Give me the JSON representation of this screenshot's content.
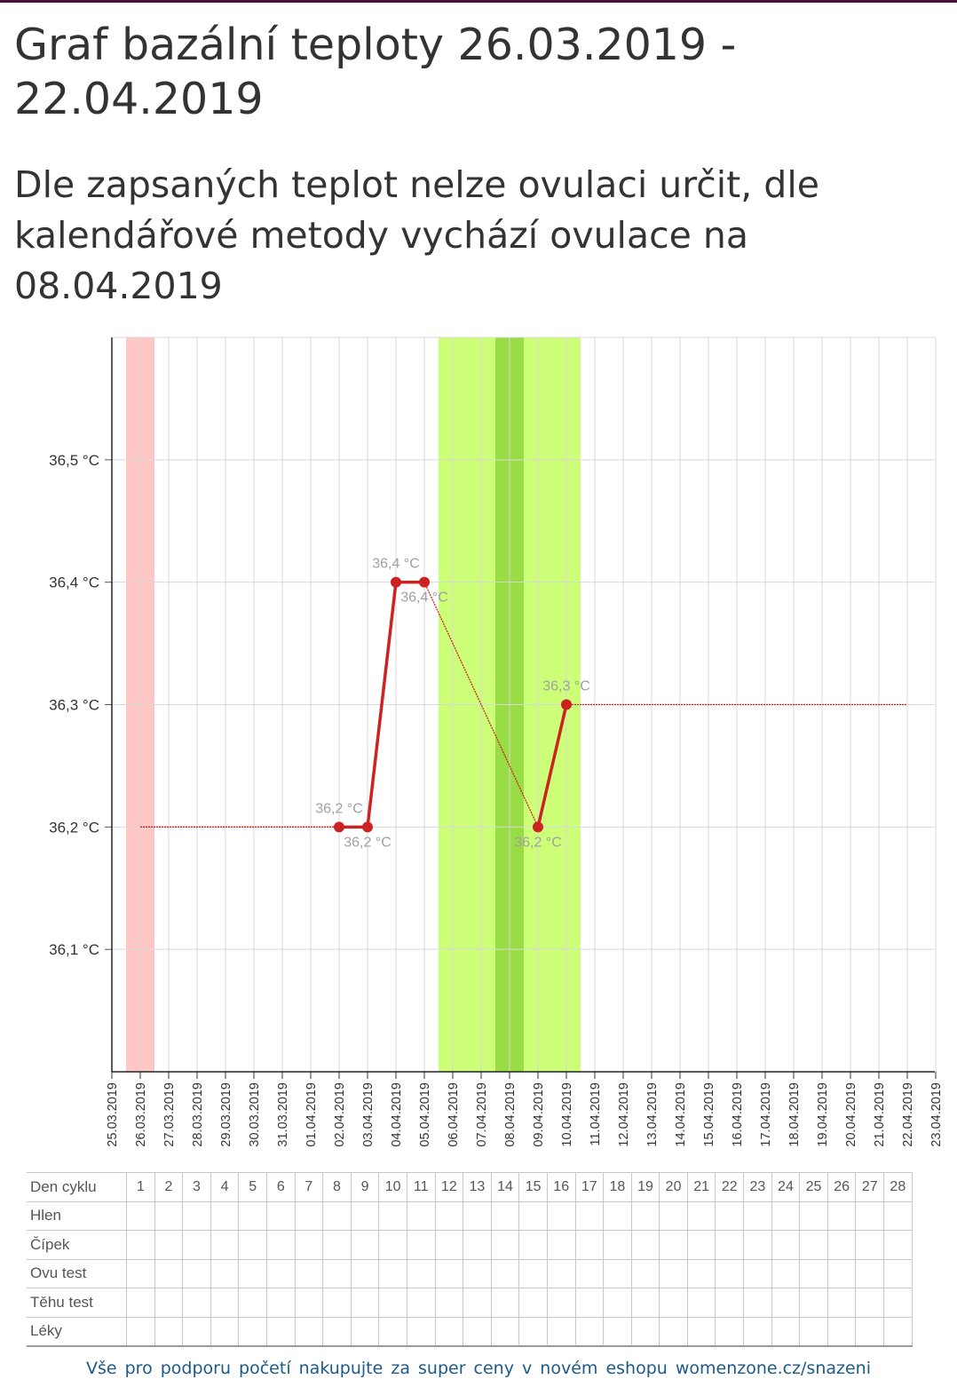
{
  "title": "Graf bazální teploty 26.03.2019 - 22.04.2019",
  "subtitle": "Dle zapsaných teplot nelze ovulaci určit, dle kalendářové metody vychází ovulace na 08.04.2019",
  "colors": {
    "menstruation": "#ffc6c6",
    "fertile": "#ccff77",
    "ovulation": "#99dd44",
    "series": "#cc2222",
    "grid": "#d8d8d8",
    "label": "#a0a0a0",
    "header": "#4b0f3a",
    "link": "#1c5a8a"
  },
  "chart_data": {
    "type": "line",
    "title": "",
    "xlabel": "",
    "ylabel": "",
    "categories": [
      "25.03.2019",
      "26.03.2019",
      "27.03.2019",
      "28.03.2019",
      "29.03.2019",
      "30.03.2019",
      "31.03.2019",
      "01.04.2019",
      "02.04.2019",
      "03.04.2019",
      "04.04.2019",
      "05.04.2019",
      "06.04.2019",
      "07.04.2019",
      "08.04.2019",
      "09.04.2019",
      "10.04.2019",
      "11.04.2019",
      "12.04.2019",
      "13.04.2019",
      "14.04.2019",
      "15.04.2019",
      "16.04.2019",
      "17.04.2019",
      "18.04.2019",
      "19.04.2019",
      "20.04.2019",
      "21.04.2019",
      "22.04.2019",
      "23.04.2019"
    ],
    "ylim": [
      36.0,
      36.6
    ],
    "yticks": [
      36.1,
      36.2,
      36.3,
      36.4,
      36.5
    ],
    "ytick_labels": [
      "36,1 °C",
      "36,2 °C",
      "36,3 °C",
      "36,4 °C",
      "36,5 °C"
    ],
    "grid": true,
    "bands": [
      {
        "kind": "menstruation",
        "from": 0.5,
        "to": 1.5
      },
      {
        "kind": "fertile",
        "from": 11.5,
        "to": 16.5
      },
      {
        "kind": "ovulation",
        "from": 13.5,
        "to": 14.5
      }
    ],
    "series": [
      {
        "points": [
          {
            "x": "02.04.2019",
            "y": 36.2,
            "label": "36,2 °C",
            "label_pos": "above"
          },
          {
            "x": "03.04.2019",
            "y": 36.2,
            "label": "36,2 °C",
            "label_pos": "below"
          },
          {
            "x": "04.04.2019",
            "y": 36.4,
            "label": "36,4 °C",
            "label_pos": "above"
          },
          {
            "x": "05.04.2019",
            "y": 36.4,
            "label": "36,4 °C",
            "label_pos": "below"
          },
          {
            "x": "09.04.2019",
            "y": 36.2,
            "label": "36,2 °C",
            "label_pos": "below"
          },
          {
            "x": "10.04.2019",
            "y": 36.3,
            "label": "36,3 °C",
            "label_pos": "above"
          }
        ]
      }
    ],
    "projection": [
      {
        "from": "26.03.2019",
        "to": "02.04.2019",
        "y": 36.2
      },
      {
        "from": "05.04.2019",
        "to": "09.04.2019",
        "y_from": 36.4,
        "y_to": 36.2
      },
      {
        "from": "10.04.2019",
        "to": "22.04.2019",
        "y": 36.3
      }
    ]
  },
  "table": {
    "rows": [
      {
        "label": "Den cyklu",
        "days": [
          "1",
          "2",
          "3",
          "4",
          "5",
          "6",
          "7",
          "8",
          "9",
          "10",
          "11",
          "12",
          "13",
          "14",
          "15",
          "16",
          "17",
          "18",
          "19",
          "20",
          "21",
          "22",
          "23",
          "24",
          "25",
          "26",
          "27",
          "28"
        ]
      },
      {
        "label": "Hlen"
      },
      {
        "label": "Čípek"
      },
      {
        "label": "Ovu test"
      },
      {
        "label": "Těhu test"
      },
      {
        "label": "Léky"
      }
    ]
  },
  "footer": "Vše pro podporu početí nakupujte za super ceny v novém eshopu womenzone.cz/snazeni"
}
